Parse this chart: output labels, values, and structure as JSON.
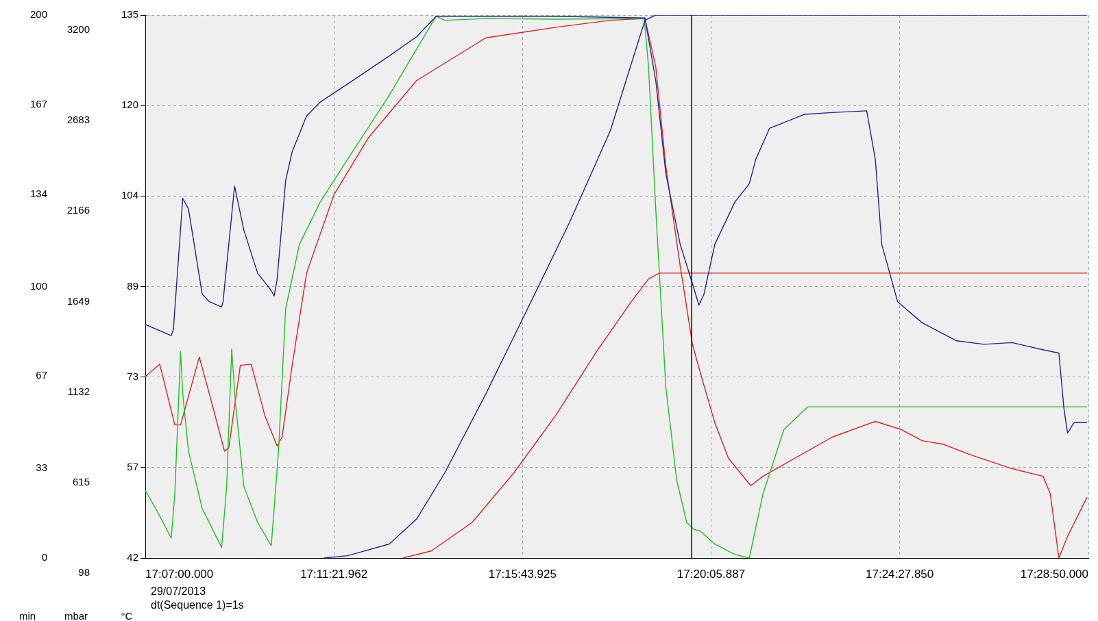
{
  "chart_data": {
    "type": "line",
    "ylabel": "°C",
    "y2label": "min",
    "y3label": "mbar",
    "annotations": [
      "29/07/2013",
      "dt(Sequence 1)=1s"
    ],
    "xlim": [
      "2013-07-29T17:07:00",
      "2013-07-29T17:28:50"
    ],
    "xticks": [
      {
        "value": "2013-07-29T17:07:00",
        "label": "17:07:00.000"
      },
      {
        "value": "2013-07-29T17:11:21.962",
        "label": "17:11:21.962"
      },
      {
        "value": "2013-07-29T17:15:43.925",
        "label": "17:15:43.925"
      },
      {
        "value": "2013-07-29T17:20:05.887",
        "label": "17:20:05.887"
      },
      {
        "value": "2013-07-29T17:24:27.850",
        "label": "17:24:27.850"
      },
      {
        "value": "2013-07-29T17:28:50",
        "label": "17:28:50.000"
      }
    ],
    "ylim": [
      42,
      135
    ],
    "yticks": [
      42,
      {
        "value": 57.5,
        "label": "57"
      },
      73,
      {
        "value": 88.5,
        "label": "89"
      },
      104,
      {
        "value": 119.5,
        "label": "120"
      },
      135
    ],
    "y2lim": [
      0,
      200
    ],
    "y2ticks": [
      0,
      33,
      67,
      100,
      134,
      167,
      200
    ],
    "y3lim": [
      98,
      3200
    ],
    "y3ticks": [
      98,
      615,
      1132,
      1649,
      2166,
      2683,
      3200
    ],
    "grid": true,
    "legend": false,
    "marker": "none",
    "line_style": "solid",
    "ref_lines": [
      {
        "axis": "x",
        "value": "2013-07-29T17:19:39",
        "color": "#000000"
      }
    ],
    "series": [
      {
        "color": "#2020a0",
        "x": [
          "2013-07-29T17:07:00",
          "2013-07-29T17:07:36",
          "2013-07-29T17:07:39",
          "2013-07-29T17:07:52",
          "2013-07-29T17:08:00",
          "2013-07-29T17:08:19",
          "2013-07-29T17:08:29",
          "2013-07-29T17:08:46",
          "2013-07-29T17:08:48",
          "2013-07-29T17:09:04",
          "2013-07-29T17:09:17",
          "2013-07-29T17:09:36",
          "2013-07-29T17:09:55",
          "2013-07-29T17:09:59",
          "2013-07-29T17:10:03",
          "2013-07-29T17:10:15",
          "2013-07-29T17:10:24",
          "2013-07-29T17:10:44",
          "2013-07-29T17:11:03",
          "2013-07-29T17:11:41",
          "2013-07-29T17:12:39",
          "2013-07-29T17:13:17",
          "2013-07-29T17:13:44",
          "2013-07-29T17:14:53",
          "2013-07-29T17:16:30",
          "2013-07-29T17:18:34",
          "2013-07-29T17:18:49",
          "2013-07-29T17:19:03",
          "2013-07-29T17:19:23",
          "2013-07-29T17:19:40",
          "2013-07-29T17:19:49",
          "2013-07-29T17:19:56",
          "2013-07-29T17:20:11",
          "2013-07-29T17:20:39",
          "2013-07-29T17:20:59",
          "2013-07-29T17:21:08",
          "2013-07-29T17:21:27",
          "2013-07-29T17:22:16",
          "2013-07-29T17:22:54",
          "2013-07-29T17:23:42",
          "2013-07-29T17:23:54",
          "2013-07-29T17:24:03",
          "2013-07-29T17:24:25",
          "2013-07-29T17:24:59",
          "2013-07-29T17:25:47",
          "2013-07-29T17:26:25",
          "2013-07-29T17:27:04",
          "2013-07-29T17:27:42",
          "2013-07-29T17:28:09",
          "2013-07-29T17:28:16",
          "2013-07-29T17:28:21",
          "2013-07-29T17:28:30",
          "2013-07-29T17:28:48"
        ],
        "values": [
          82.0,
          80.1,
          81.1,
          103.6,
          101.8,
          87.2,
          85.9,
          85.0,
          85.9,
          105.7,
          98.1,
          90.8,
          87.8,
          86.9,
          89.6,
          106.7,
          111.6,
          117.7,
          120.1,
          123.2,
          128.0,
          131.3,
          134.8,
          134.8,
          134.8,
          134.5,
          123.8,
          107.9,
          95.7,
          89.0,
          85.3,
          87.2,
          95.7,
          103.0,
          106.1,
          110.3,
          115.6,
          118.0,
          118.3,
          118.6,
          110.3,
          95.7,
          85.9,
          82.3,
          79.2,
          78.6,
          78.9,
          77.8,
          77.1,
          67.6,
          63.4,
          65.2,
          65.2
        ]
      },
      {
        "color": "#2020a0",
        "x": [
          "2013-07-29T17:11:08",
          "2013-07-29T17:11:41",
          "2013-07-29T17:12:39",
          "2013-07-29T17:13:17",
          "2013-07-29T17:13:56",
          "2013-07-29T17:14:53",
          "2013-07-29T17:15:51",
          "2013-07-29T17:16:49",
          "2013-07-29T17:17:46",
          "2013-07-29T17:18:34",
          "2013-07-29T17:18:49",
          "2013-07-29T17:28:48"
        ],
        "values": [
          42,
          42.4,
          44.4,
          48.7,
          56.6,
          70.1,
          84.7,
          99.4,
          115.2,
          134.1,
          135,
          135
        ]
      },
      {
        "color": "#20c020",
        "x": [
          "2013-07-29T17:07:00",
          "2013-07-29T17:07:17",
          "2013-07-29T17:07:36",
          "2013-07-29T17:07:41",
          "2013-07-29T17:07:49",
          "2013-07-29T17:07:52",
          "2013-07-29T17:08:00",
          "2013-07-29T17:08:19",
          "2013-07-29T17:08:46",
          "2013-07-29T17:08:53",
          "2013-07-29T17:09:00",
          "2013-07-29T17:09:05",
          "2013-07-29T17:09:17",
          "2013-07-29T17:09:36",
          "2013-07-29T17:09:55",
          "2013-07-29T17:10:05",
          "2013-07-29T17:10:15",
          "2013-07-29T17:10:34",
          "2013-07-29T17:11:03",
          "2013-07-29T17:11:41",
          "2013-07-29T17:12:39",
          "2013-07-29T17:13:44",
          "2013-07-29T17:13:56",
          "2013-07-29T17:14:53",
          "2013-07-29T17:16:30",
          "2013-07-29T17:18:33",
          "2013-07-29T17:18:39",
          "2013-07-29T17:18:49",
          "2013-07-29T17:19:03",
          "2013-07-29T17:19:18",
          "2013-07-29T17:19:32",
          "2013-07-29T17:19:42",
          "2013-07-29T17:19:51",
          "2013-07-29T17:20:11",
          "2013-07-29T17:20:39",
          "2013-07-29T17:20:59",
          "2013-07-29T17:21:18",
          "2013-07-29T17:21:47",
          "2013-07-29T17:22:20",
          "2013-07-29T17:24:30",
          "2013-07-29T17:28:48"
        ],
        "values": [
          53.6,
          49.9,
          45.4,
          53.0,
          77.4,
          70.1,
          60.3,
          50.5,
          43.8,
          54.2,
          77.8,
          68.9,
          54.2,
          48.1,
          44.1,
          60.3,
          84.7,
          95.7,
          103.0,
          110.3,
          121.3,
          134.8,
          134.1,
          134.4,
          134.3,
          134.4,
          126.2,
          101.8,
          71.3,
          55.4,
          48.1,
          46.9,
          46.6,
          44.4,
          42.6,
          42.0,
          53.0,
          64.0,
          67.9,
          67.9,
          67.9
        ]
      },
      {
        "color": "#e02020",
        "x": [
          "2013-07-29T17:07:00",
          "2013-07-29T17:07:20",
          "2013-07-29T17:07:41",
          "2013-07-29T17:07:49",
          "2013-07-29T17:08:15",
          "2013-07-29T17:08:29",
          "2013-07-29T17:08:50",
          "2013-07-29T17:08:56",
          "2013-07-29T17:09:12",
          "2013-07-29T17:09:27",
          "2013-07-29T17:09:46",
          "2013-07-29T17:10:03",
          "2013-07-29T17:10:10",
          "2013-07-29T17:10:24",
          "2013-07-29T17:10:44",
          "2013-07-29T17:11:22",
          "2013-07-29T17:12:10",
          "2013-07-29T17:13:17",
          "2013-07-29T17:14:53",
          "2013-07-29T17:16:30",
          "2013-07-29T17:17:46",
          "2013-07-29T17:18:34",
          "2013-07-29T17:18:49",
          "2013-07-29T17:19:03",
          "2013-07-29T17:19:23",
          "2013-07-29T17:19:40",
          "2013-07-29T17:19:51",
          "2013-07-29T17:20:11",
          "2013-07-29T17:20:30",
          "2013-07-29T17:21:01",
          "2013-07-29T17:21:18",
          "2013-07-29T17:22:54",
          "2013-07-29T17:23:54",
          "2013-07-29T17:24:30",
          "2013-07-29T17:24:59",
          "2013-07-29T17:25:28",
          "2013-07-29T17:26:06",
          "2013-07-29T17:27:04",
          "2013-07-29T17:27:47",
          "2013-07-29T17:27:57",
          "2013-07-29T17:28:09",
          "2013-07-29T17:28:21",
          "2013-07-29T17:28:48"
        ],
        "values": [
          73.1,
          75.2,
          64.8,
          64.8,
          76.4,
          70.1,
          60.3,
          60.9,
          75.0,
          75.2,
          66.4,
          61.2,
          62.7,
          75.0,
          90.8,
          104.2,
          114.0,
          123.8,
          131.1,
          132.9,
          134.1,
          134.4,
          126.2,
          109.1,
          92.0,
          78.6,
          73.7,
          65.2,
          59.1,
          54.4,
          56.0,
          62.7,
          65.4,
          64.0,
          62.1,
          61.5,
          59.7,
          57.3,
          56.0,
          53.0,
          42.0,
          45.7,
          52.4
        ]
      },
      {
        "color": "#e02020",
        "x": [
          "2013-07-29T17:12:58",
          "2013-07-29T17:13:37",
          "2013-07-29T17:14:34",
          "2013-07-29T17:15:32",
          "2013-07-29T17:16:30",
          "2013-07-29T17:17:27",
          "2013-07-29T17:18:15",
          "2013-07-29T17:18:39",
          "2013-07-29T17:18:54",
          "2013-07-29T17:28:48"
        ],
        "values": [
          42,
          43.2,
          48.1,
          56.6,
          66.4,
          77.4,
          85.9,
          89.8,
          90.8,
          90.8
        ]
      }
    ]
  }
}
